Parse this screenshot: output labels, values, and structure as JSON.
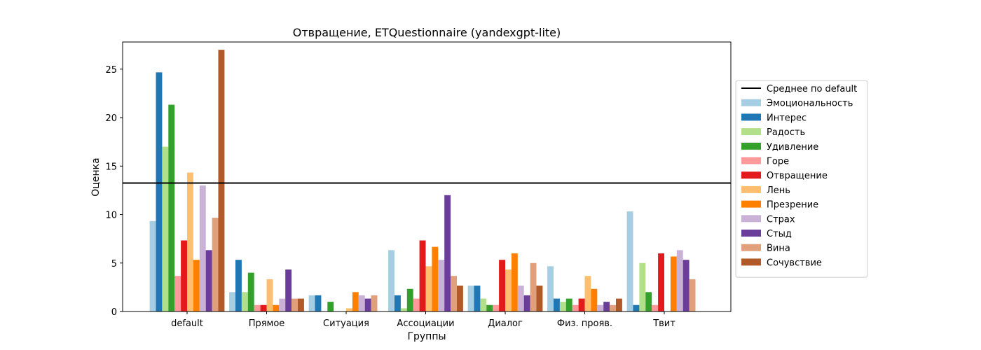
{
  "chart_data": {
    "type": "bar",
    "title": "Отвращение, ETQuestionnaire (yandexgpt-lite)",
    "xlabel": "Группы",
    "ylabel": "Оценка",
    "ylim": [
      0,
      27.8
    ],
    "yticks": [
      0,
      5,
      10,
      15,
      20,
      25
    ],
    "grid": false,
    "legend_position": "right",
    "categories": [
      "default",
      "Прямое",
      "Ситуация",
      "Ассоциации",
      "Диалог",
      "Физ. прояв.",
      "Твит"
    ],
    "reference_line": {
      "label": "Среднее по default",
      "value": 13.25,
      "color": "#000000"
    },
    "series": [
      {
        "name": "Эмоциональность",
        "color": "#a6cee3",
        "values": [
          9.33,
          2.0,
          1.67,
          6.33,
          2.67,
          4.67,
          10.33
        ]
      },
      {
        "name": "Интерес",
        "color": "#1f78b4",
        "values": [
          24.67,
          5.33,
          1.67,
          1.67,
          2.67,
          1.33,
          0.67
        ]
      },
      {
        "name": "Радость",
        "color": "#b2df8a",
        "values": [
          17.0,
          2.0,
          0.0,
          0.33,
          1.33,
          1.0,
          5.0
        ]
      },
      {
        "name": "Удивление",
        "color": "#33a02c",
        "values": [
          21.33,
          4.0,
          1.0,
          2.33,
          0.67,
          1.33,
          2.0
        ]
      },
      {
        "name": "Горе",
        "color": "#fb9a99",
        "values": [
          3.67,
          0.67,
          0.0,
          1.33,
          0.67,
          0.67,
          0.67
        ]
      },
      {
        "name": "Отвращение",
        "color": "#e31a1c",
        "values": [
          7.33,
          0.67,
          0.0,
          7.33,
          5.33,
          1.33,
          6.0
        ]
      },
      {
        "name": "Лень",
        "color": "#fdbf6f",
        "values": [
          14.33,
          3.33,
          0.33,
          4.67,
          4.33,
          3.67,
          0.0
        ]
      },
      {
        "name": "Презрение",
        "color": "#ff7f00",
        "values": [
          5.33,
          0.67,
          2.0,
          6.67,
          6.0,
          2.33,
          5.67
        ]
      },
      {
        "name": "Страх",
        "color": "#cab2d6",
        "values": [
          13.0,
          1.33,
          1.67,
          5.33,
          2.67,
          0.67,
          6.33
        ]
      },
      {
        "name": "Стыд",
        "color": "#6a3d9a",
        "values": [
          6.33,
          4.33,
          1.33,
          12.0,
          1.67,
          1.0,
          5.33
        ]
      },
      {
        "name": "Вина",
        "color": "#e0a07c",
        "values": [
          9.67,
          1.33,
          1.67,
          3.67,
          5.0,
          0.67,
          3.33
        ]
      },
      {
        "name": "Сочувствие",
        "color": "#b15928",
        "values": [
          27.0,
          1.33,
          0.0,
          2.67,
          2.67,
          1.33,
          0.0
        ]
      }
    ]
  }
}
